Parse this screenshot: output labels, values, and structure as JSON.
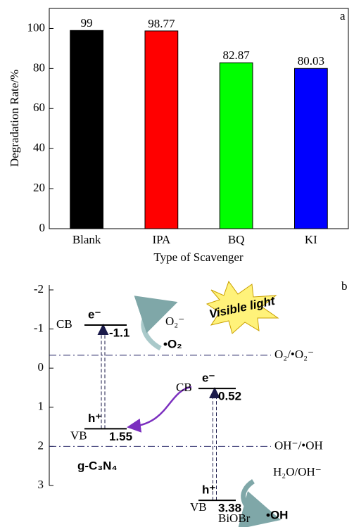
{
  "chart_data": {
    "type": "bar",
    "panel_label": "a",
    "categories": [
      "Blank",
      "IPA",
      "BQ",
      "KI"
    ],
    "values": [
      99,
      98.77,
      82.87,
      80.03
    ],
    "colors": [
      "#000000",
      "#ff0000",
      "#00ff00",
      "#0000ff"
    ],
    "x_label": "Type of Scavenger",
    "y_label": "Degradation Rate/%",
    "ylim": [
      0,
      110
    ],
    "yticks": [
      0,
      20,
      40,
      60,
      80,
      100
    ]
  },
  "diagram": {
    "panel_label": "b",
    "ylim": [
      -2,
      3
    ],
    "yticks": [
      -2,
      -1,
      0,
      1,
      2,
      3
    ],
    "light": "Visible light",
    "reference_levels": [
      {
        "value": -0.33,
        "label": "O₂/•O₂⁻"
      },
      {
        "value": 2,
        "label": "OH⁻/•OH"
      }
    ],
    "materials": [
      {
        "name": "g-C₃N₄",
        "cb": {
          "tag": "CB",
          "carrier": "e⁻",
          "value": -1.1
        },
        "vb": {
          "tag": "VB",
          "carrier": "h⁺",
          "value": 1.55
        }
      },
      {
        "name": "BiOBr",
        "cb": {
          "tag": "CB",
          "carrier": "e⁻",
          "value": 0.52
        },
        "vb": {
          "tag": "VB",
          "carrier": "h⁺",
          "value": 3.38
        }
      }
    ],
    "species": {
      "o2_minus": "O₂⁻",
      "o2_radical": "•O₂",
      "h2o": "H₂O/OH⁻",
      "oh_radical": "•OH"
    }
  }
}
